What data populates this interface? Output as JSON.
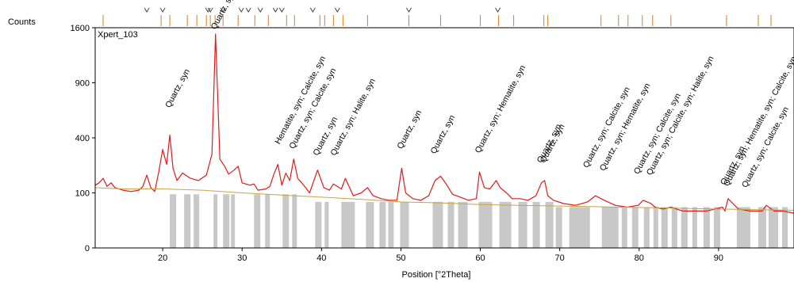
{
  "chart_data": {
    "type": "line",
    "title": "",
    "panel_label": "Xpert_103",
    "xlabel": "Position [°2Theta]",
    "ylabel": "Counts",
    "xlim": [
      11.5,
      99.5
    ],
    "ylim": [
      0,
      1600
    ],
    "y_scale": "sqrt",
    "x_ticks": [
      20,
      30,
      40,
      50,
      60,
      70,
      80,
      90
    ],
    "y_ticks": [
      0,
      100,
      400,
      900,
      1600
    ],
    "grid": false,
    "legend": "none",
    "colors": {
      "observed": "#e31a1c",
      "calculated": "#1f1fbf",
      "background": "#c8a44a",
      "difference": "#c8c8c8",
      "peak_marker": "#e07b1a"
    },
    "series": [
      {
        "name": "",
        "x": [
          11.5,
          12.0,
          12.5,
          13.0,
          13.5,
          14.0,
          15.0,
          16.0,
          17.0,
          17.5,
          18.0,
          18.5,
          19.0,
          19.5,
          20.0,
          20.5,
          20.9,
          21.3,
          21.8,
          22.5,
          23.5,
          24.5,
          25.5,
          26.2,
          26.65,
          27.2,
          27.8,
          28.3,
          29.0,
          29.5,
          30.0,
          31.0,
          31.5,
          32.0,
          33.0,
          33.5,
          34.0,
          34.5,
          35.0,
          35.5,
          36.0,
          36.5,
          37.0,
          37.5,
          38.0,
          38.5,
          39.5,
          40.3,
          41.0,
          41.5,
          42.5,
          43.0,
          44.0,
          45.0,
          45.8,
          46.5,
          47.5,
          48.5,
          49.5,
          50.1,
          50.6,
          51.5,
          52.5,
          53.5,
          54.3,
          55.0,
          55.8,
          56.5,
          57.5,
          58.5,
          59.5,
          59.9,
          60.5,
          61.2,
          62.0,
          62.5,
          63.5,
          64.0,
          65.0,
          66.0,
          67.0,
          67.7,
          68.1,
          68.5,
          69.2,
          70.5,
          72.0,
          73.5,
          74.5,
          75.6,
          77.0,
          78.5,
          79.9,
          80.5,
          81.5,
          82.0,
          83.0,
          84.0,
          85.5,
          87.0,
          88.5,
          90.5,
          90.8,
          91.2,
          92.5,
          94.0,
          95.5,
          96.0,
          97.0,
          98.0,
          99.5
        ],
        "y": [
          130,
          140,
          160,
          125,
          140,
          120,
          110,
          105,
          110,
          125,
          175,
          120,
          105,
          190,
          320,
          230,
          420,
          210,
          150,
          185,
          160,
          150,
          175,
          290,
          1510,
          260,
          220,
          180,
          200,
          220,
          140,
          130,
          135,
          110,
          115,
          125,
          180,
          230,
          130,
          185,
          150,
          260,
          160,
          140,
          120,
          100,
          200,
          120,
          110,
          135,
          115,
          160,
          90,
          100,
          120,
          90,
          80,
          75,
          75,
          210,
          100,
          80,
          75,
          90,
          150,
          170,
          130,
          95,
          85,
          75,
          80,
          190,
          120,
          115,
          150,
          120,
          95,
          80,
          80,
          75,
          90,
          140,
          150,
          90,
          75,
          65,
          60,
          70,
          90,
          75,
          60,
          55,
          60,
          75,
          65,
          55,
          50,
          55,
          45,
          45,
          45,
          55,
          45,
          80,
          50,
          45,
          45,
          60,
          45,
          45,
          40
        ]
      },
      {
        "name": "",
        "x": [
          11.5,
          15.0,
          20.0,
          25.0,
          30.0,
          35.0,
          40.0,
          45.0,
          50.0,
          55.0,
          60.0,
          65.0,
          70.0,
          75.0,
          80.0,
          85.0,
          90.0,
          95.0,
          99.5
        ],
        "y": [
          120,
          115,
          115,
          110,
          100,
          92,
          85,
          78,
          70,
          67,
          62,
          60,
          58,
          56,
          54,
          52,
          50,
          48,
          47
        ]
      }
    ],
    "peak_labels": [
      {
        "x": 20.9,
        "y": 600,
        "text": "Quartz, syn"
      },
      {
        "x": 26.65,
        "y": 1500,
        "text": "Quartz, syn"
      },
      {
        "x": 34.7,
        "y": 320,
        "text": "Hematite, syn; Calcite, syn"
      },
      {
        "x": 36.5,
        "y": 290,
        "text": "Quartz, syn; Calcite, syn"
      },
      {
        "x": 39.5,
        "y": 250,
        "text": "Quartz, syn"
      },
      {
        "x": 41.7,
        "y": 250,
        "text": "Quartz, syn; Halite, syn"
      },
      {
        "x": 50.1,
        "y": 290,
        "text": "Quartz, syn"
      },
      {
        "x": 54.3,
        "y": 260,
        "text": "Quartz, syn"
      },
      {
        "x": 59.9,
        "y": 265,
        "text": "Quartz, syn; Hematite, syn"
      },
      {
        "x": 67.7,
        "y": 210,
        "text": "Quartz, syn"
      },
      {
        "x": 68.1,
        "y": 210,
        "text": "Quartz, syn"
      },
      {
        "x": 73.5,
        "y": 185,
        "text": "Quartz, syn; Calcite, syn"
      },
      {
        "x": 75.6,
        "y": 170,
        "text": "Quartz, syn; Hematite, syn"
      },
      {
        "x": 79.9,
        "y": 155,
        "text": "Quartz, syn; Calcite, syn"
      },
      {
        "x": 81.5,
        "y": 150,
        "text": "Quartz, syn; Calcite, syn; Halite, syn"
      },
      {
        "x": 90.8,
        "y": 110,
        "text": "Quartz, syn"
      },
      {
        "x": 91.2,
        "y": 105,
        "text": "Quartz, syn; Hematite, syn; Calcite, syn"
      },
      {
        "x": 93.5,
        "y": 100,
        "text": "Quartz, syn; Calcite, syn"
      }
    ],
    "v_markers": [
      18.0,
      20.0,
      25.7,
      26.0,
      27.6,
      29.9,
      30.8,
      32.3,
      34.2,
      35.0,
      38.9,
      42.0,
      51.0,
      62.2
    ],
    "tick_markers": [
      12.5,
      19.8,
      20.9,
      23.1,
      24.3,
      25.5,
      26.0,
      26.6,
      27.6,
      29.5,
      31.6,
      33.3,
      35.6,
      36.6,
      39.8,
      40.4,
      41.5,
      42.7,
      45.8,
      51.0,
      55.0,
      60.0,
      62.3,
      64.2,
      68.0,
      68.5,
      75.2,
      77.4,
      78.6,
      80.4,
      81.7,
      84.0,
      91.0,
      95.0,
      96.6
    ],
    "difference_bars": [
      [
        20.9,
        21.7
      ],
      [
        22.7,
        23.5
      ],
      [
        23.9,
        24.6
      ],
      [
        26.4,
        26.9
      ],
      [
        27.6,
        28.4
      ],
      [
        28.6,
        29.1
      ],
      [
        31.5,
        32.3
      ],
      [
        32.9,
        33.5
      ],
      [
        35.1,
        35.9
      ],
      [
        36.3,
        36.9
      ],
      [
        39.2,
        40.0
      ],
      [
        40.4,
        40.9
      ],
      [
        42.5,
        44.2
      ],
      [
        45.6,
        46.6
      ],
      [
        47.3,
        48.1
      ],
      [
        48.4,
        49.1
      ],
      [
        49.9,
        51.0
      ],
      [
        54.0,
        55.3
      ],
      [
        55.9,
        56.7
      ],
      [
        57.2,
        58.4
      ],
      [
        59.8,
        61.5
      ],
      [
        62.4,
        63.9
      ],
      [
        64.8,
        65.9
      ],
      [
        66.6,
        67.5
      ],
      [
        68.2,
        69.2
      ],
      [
        69.5,
        70.3
      ],
      [
        71.2,
        73.8
      ],
      [
        75.3,
        77.4
      ],
      [
        77.8,
        78.5
      ],
      [
        79.1,
        79.9
      ],
      [
        80.6,
        81.3
      ],
      [
        81.8,
        82.4
      ],
      [
        82.8,
        83.6
      ],
      [
        84.1,
        84.8
      ],
      [
        85.3,
        86.1
      ],
      [
        86.7,
        87.3
      ],
      [
        88.1,
        88.9
      ],
      [
        89.4,
        90.2
      ],
      [
        92.3,
        94.0
      ],
      [
        95.0,
        96.0
      ],
      [
        96.3,
        97.5
      ],
      [
        98.0,
        98.7
      ]
    ]
  }
}
